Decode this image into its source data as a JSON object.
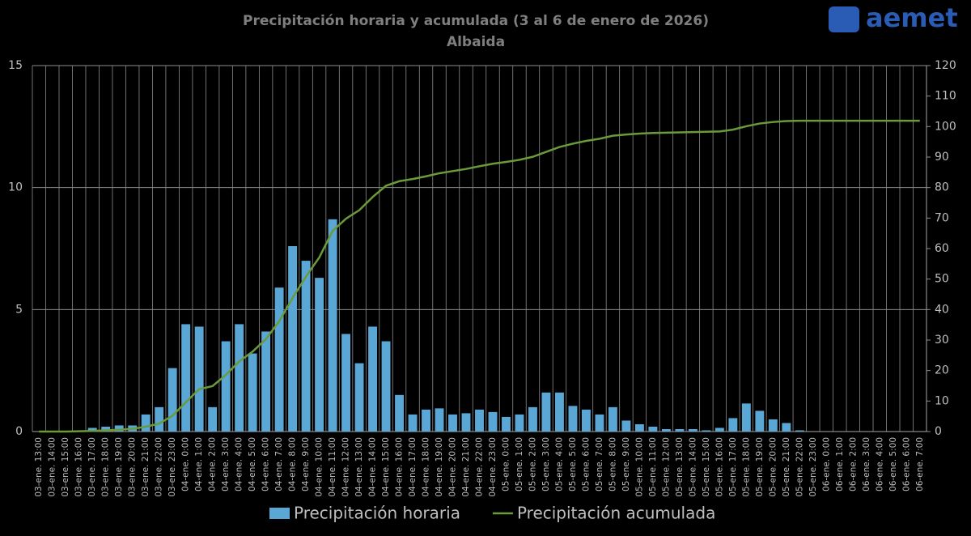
{
  "logo": "aemet",
  "chart_data": {
    "type": "bar-line",
    "title": "Precipitación horaria y acumulada (3 al 6 de enero de 2026)",
    "subtitle": "Albaida",
    "categories": [
      "03-ene. 13:00",
      "03-ene. 14:00",
      "03-ene. 15:00",
      "03-ene. 16:00",
      "03-ene. 17:00",
      "03-ene. 18:00",
      "03-ene. 19:00",
      "03-ene. 20:00",
      "03-ene. 21:00",
      "03-ene. 22:00",
      "03-ene. 23:00",
      "04-ene. 0:00",
      "04-ene. 1:00",
      "04-ene. 2:00",
      "04-ene. 3:00",
      "04-ene. 4:00",
      "04-ene. 5:00",
      "04-ene. 6:00",
      "04-ene. 7:00",
      "04-ene. 8:00",
      "04-ene. 9:00",
      "04-ene. 10:00",
      "04-ene. 11:00",
      "04-ene. 12:00",
      "04-ene. 13:00",
      "04-ene. 14:00",
      "04-ene. 15:00",
      "04-ene. 16:00",
      "04-ene. 17:00",
      "04-ene. 18:00",
      "04-ene. 19:00",
      "04-ene. 20:00",
      "04-ene. 21:00",
      "04-ene. 22:00",
      "04-ene. 23:00",
      "05-ene. 0:00",
      "05-ene. 1:00",
      "05-ene. 2:00",
      "05-ene. 3:00",
      "05-ene. 4:00",
      "05-ene. 5:00",
      "05-ene. 6:00",
      "05-ene. 7:00",
      "05-ene. 8:00",
      "05-ene. 9:00",
      "05-ene. 10:00",
      "05-ene. 11:00",
      "05-ene. 12:00",
      "05-ene. 13:00",
      "05-ene. 14:00",
      "05-ene. 15:00",
      "05-ene. 16:00",
      "05-ene. 17:00",
      "05-ene. 18:00",
      "05-ene. 19:00",
      "05-ene. 20:00",
      "05-ene. 21:00",
      "05-ene. 22:00",
      "05-ene. 23:00",
      "06-ene. 0:00",
      "06-ene. 1:00",
      "06-ene. 2:00",
      "06-ene. 3:00",
      "06-ene. 4:00",
      "06-ene. 5:00",
      "06-ene. 6:00",
      "06-ene. 7:00"
    ],
    "series": [
      {
        "name": "Precipitación horaria",
        "type": "bar",
        "color": "#5aa7d6",
        "values": [
          0,
          0,
          0,
          0.05,
          0.15,
          0.2,
          0.25,
          0.25,
          0.7,
          1.0,
          2.6,
          4.4,
          4.3,
          1.0,
          3.7,
          4.4,
          3.2,
          4.1,
          5.9,
          7.6,
          7.0,
          6.3,
          8.7,
          4.0,
          2.8,
          4.3,
          3.7,
          1.5,
          0.7,
          0.9,
          0.95,
          0.7,
          0.75,
          0.9,
          0.8,
          0.6,
          0.7,
          1.0,
          1.6,
          1.6,
          1.05,
          0.9,
          0.7,
          1.0,
          0.45,
          0.3,
          0.2,
          0.1,
          0.1,
          0.1,
          0.05,
          0.15,
          0.55,
          1.15,
          0.85,
          0.5,
          0.35,
          0.05,
          0,
          0,
          0,
          0,
          0,
          0,
          0,
          0,
          0
        ]
      },
      {
        "name": "Precipitación acumulada",
        "type": "line",
        "axis": "y2",
        "color": "#6a9a3a",
        "values": [
          0,
          0,
          0,
          0.1,
          0.2,
          0.4,
          0.6,
          0.9,
          1.6,
          2.6,
          5.2,
          9.6,
          13.9,
          14.9,
          18.6,
          23.0,
          26.2,
          30.3,
          36.2,
          43.8,
          50.8,
          57.1,
          65.8,
          69.8,
          72.6,
          76.9,
          80.6,
          82.1,
          82.8,
          83.7,
          84.7,
          85.4,
          86.1,
          87.0,
          87.8,
          88.4,
          89.1,
          90.1,
          91.7,
          93.3,
          94.4,
          95.3,
          96.0,
          97.0,
          97.4,
          97.7,
          97.9,
          98.0,
          98.1,
          98.2,
          98.3,
          98.4,
          99.0,
          100.1,
          101.0,
          101.5,
          101.8,
          101.9,
          101.9,
          101.9,
          101.9,
          101.9,
          101.9,
          101.9,
          101.9,
          101.9,
          101.9
        ]
      }
    ],
    "ylim": [
      0,
      15
    ],
    "yticks": [
      0,
      5,
      10,
      15
    ],
    "y2lim": [
      0,
      120
    ],
    "y2ticks": [
      0,
      10,
      20,
      30,
      40,
      50,
      60,
      70,
      80,
      90,
      100,
      110,
      120
    ],
    "grid": true
  }
}
